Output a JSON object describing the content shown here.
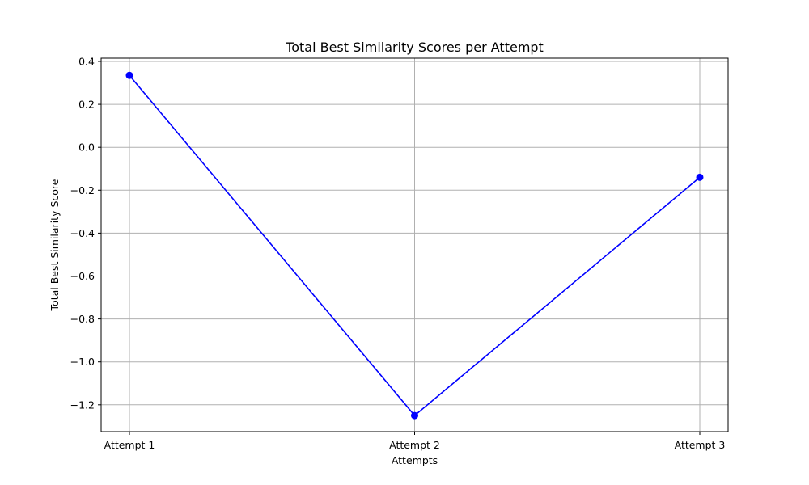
{
  "chart_data": {
    "type": "line",
    "title": "Total Best Similarity Scores per Attempt",
    "xlabel": "Attempts",
    "ylabel": "Total Best Similarity Score",
    "categories": [
      "Attempt 1",
      "Attempt 2",
      "Attempt 3"
    ],
    "series": [
      {
        "values": [
          0.335,
          -1.25,
          -0.14
        ],
        "color": "#0000ff",
        "marker": "circle"
      }
    ],
    "ylim": [
      -1.325,
      0.415
    ],
    "yticks": [
      0.4,
      0.2,
      0.0,
      -0.2,
      -0.4,
      -0.6,
      -0.8,
      -1.0,
      -1.2
    ],
    "ytick_labels": [
      "0.4",
      "0.2",
      "0.0",
      "−0.2",
      "−0.4",
      "−0.6",
      "−0.8",
      "−1.0",
      "−1.2"
    ],
    "grid": true,
    "legend": "none"
  }
}
